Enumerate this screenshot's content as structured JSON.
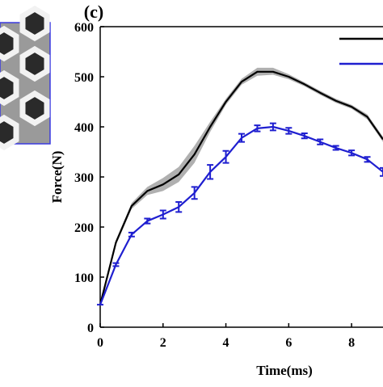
{
  "chart_data": {
    "type": "line",
    "title": "(c)",
    "x_label": "Time(ms)",
    "y_label": "Force(N)",
    "x": [
      0,
      0.5,
      1,
      1.5,
      2,
      2.5,
      3,
      3.5,
      4,
      4.5,
      5,
      5.5,
      6,
      6.5,
      7,
      7.5,
      8,
      8.5,
      9
    ],
    "series": [
      {
        "color": "#000000",
        "band_color": "#b0b0b0",
        "values": [
          45,
          169,
          242,
          272,
          285,
          305,
          345,
          400,
          450,
          490,
          510,
          510,
          500,
          485,
          468,
          452,
          440,
          420,
          375
        ],
        "lower": [
          42,
          164,
          236,
          264,
          272,
          290,
          328,
          390,
          444,
          484,
          502,
          504,
          495,
          481,
          464,
          448,
          436,
          415,
          370
        ],
        "upper": [
          48,
          174,
          248,
          280,
          298,
          320,
          362,
          410,
          456,
          496,
          518,
          518,
          505,
          489,
          472,
          456,
          444,
          425,
          380
        ]
      },
      {
        "color": "#1f1fd0",
        "values": [
          45,
          125,
          185,
          212,
          225,
          240,
          268,
          310,
          340,
          378,
          397,
          400,
          392,
          382,
          370,
          358,
          348,
          335,
          310
        ],
        "errors": [
          0,
          3,
          4,
          5,
          8,
          10,
          12,
          14,
          12,
          8,
          6,
          7,
          6,
          5,
          5,
          4,
          5,
          5,
          8
        ]
      }
    ],
    "xlim": [
      0,
      9
    ],
    "xticks": [
      0,
      2,
      4,
      6,
      8
    ],
    "ylim": [
      0,
      600
    ],
    "yticks": [
      0,
      100,
      200,
      300,
      400,
      500,
      600
    ]
  }
}
